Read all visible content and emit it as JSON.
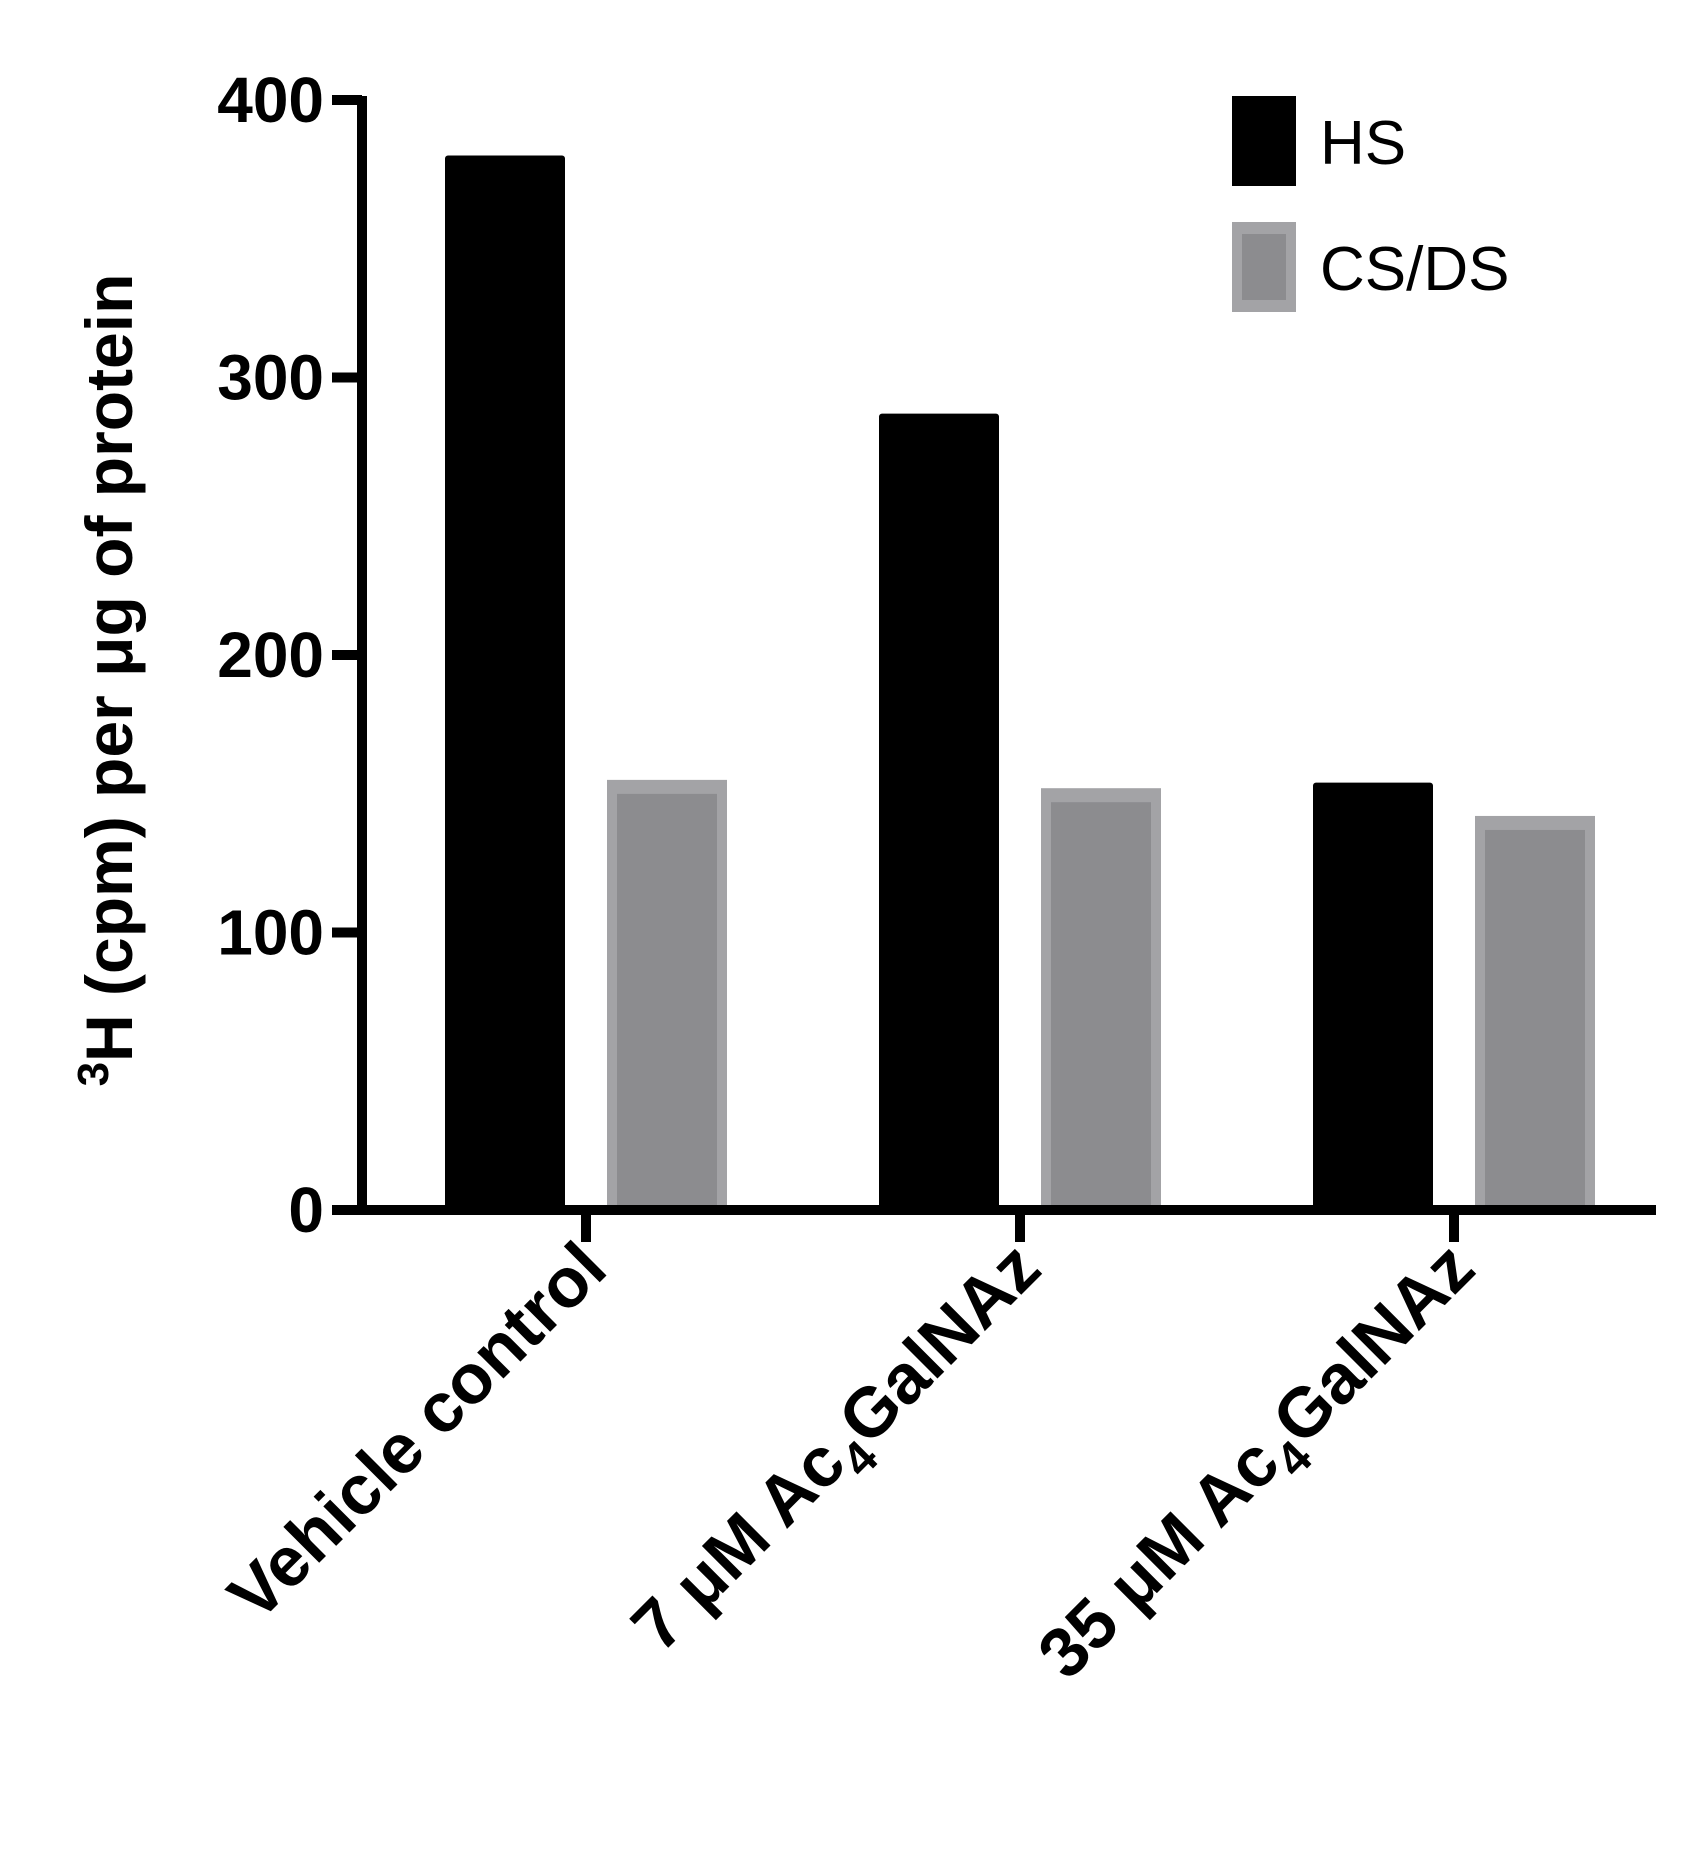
{
  "chart_data": {
    "type": "bar",
    "title": "",
    "categories": [
      {
        "pre": "Vehicle control",
        "sub": "",
        "post": ""
      },
      {
        "pre": "7 μM Ac",
        "sub": "4",
        "post": "GalNAz"
      },
      {
        "pre": "35 μM Ac",
        "sub": "4",
        "post": "GalNAz"
      }
    ],
    "series": [
      {
        "name": "HS",
        "values": [
          380,
          287,
          154
        ],
        "color": "#000000"
      },
      {
        "name": "CS/DS",
        "values": [
          155,
          152,
          142
        ],
        "color": "#8c8c8f"
      }
    ],
    "xlabel": "",
    "ylabel": {
      "sup": "3",
      "text": "H (cpm) per μg of protein"
    },
    "ylim": [
      0,
      400
    ],
    "yticks": [
      0,
      100,
      200,
      300,
      400
    ],
    "grid": false,
    "legend_position": "top-right"
  }
}
